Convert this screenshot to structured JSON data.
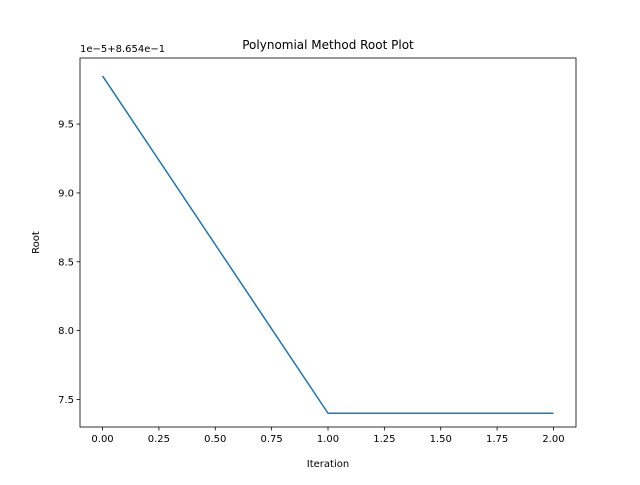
{
  "chart_data": {
    "type": "line",
    "title": "Polynomial Method Root Plot",
    "xlabel": "Iteration",
    "ylabel": "Root",
    "y_offset_label": "1e−5+8.654e−1",
    "xlim": [
      -0.1,
      2.1
    ],
    "ylim": [
      7.3,
      9.98
    ],
    "xticks": [
      0.0,
      0.25,
      0.5,
      0.75,
      1.0,
      1.25,
      1.5,
      1.75,
      2.0
    ],
    "xtick_labels": [
      "0.00",
      "0.25",
      "0.50",
      "0.75",
      "1.00",
      "1.25",
      "1.50",
      "1.75",
      "2.00"
    ],
    "yticks": [
      7.5,
      8.0,
      8.5,
      9.0,
      9.5
    ],
    "ytick_labels": [
      "7.5",
      "8.0",
      "8.5",
      "9.0",
      "9.5"
    ],
    "grid": false,
    "series": [
      {
        "color": "#1f77b4",
        "x": [
          0,
          1,
          2
        ],
        "y": [
          9.85,
          7.4,
          7.4
        ]
      }
    ]
  }
}
